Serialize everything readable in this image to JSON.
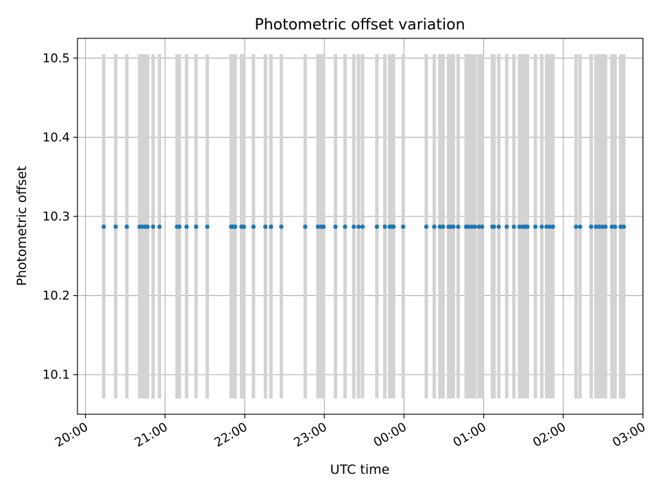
{
  "chart_data": {
    "type": "scatter",
    "title": "Photometric offset variation",
    "xlabel": "UTC time",
    "ylabel": "Photometric offset",
    "x_unit": "hours after 20:00 UTC (axis shows clock times, wrapping past midnight)",
    "xlim": [
      -0.1,
      7.0
    ],
    "ylim": [
      10.05,
      10.525
    ],
    "x_ticks": [
      {
        "value": 0,
        "label": "20:00"
      },
      {
        "value": 1,
        "label": "21:00"
      },
      {
        "value": 2,
        "label": "22:00"
      },
      {
        "value": 3,
        "label": "23:00"
      },
      {
        "value": 4,
        "label": "00:00"
      },
      {
        "value": 5,
        "label": "01:00"
      },
      {
        "value": 6,
        "label": "02:00"
      },
      {
        "value": 7,
        "label": "03:00"
      }
    ],
    "y_ticks": [
      {
        "value": 10.1,
        "label": "10.1"
      },
      {
        "value": 10.2,
        "label": "10.2"
      },
      {
        "value": 10.3,
        "label": "10.3"
      },
      {
        "value": 10.4,
        "label": "10.4"
      },
      {
        "value": 10.5,
        "label": "10.5"
      }
    ],
    "grid": true,
    "offset_value": 10.287,
    "error_range": [
      10.07,
      10.505
    ],
    "x": [
      0.23,
      0.38,
      0.52,
      0.68,
      0.71,
      0.75,
      0.78,
      0.85,
      0.93,
      1.15,
      1.18,
      1.27,
      1.39,
      1.53,
      1.83,
      1.85,
      1.88,
      1.96,
      1.99,
      2.11,
      2.26,
      2.33,
      2.46,
      2.76,
      2.92,
      2.96,
      2.99,
      3.14,
      3.26,
      3.37,
      3.43,
      3.48,
      3.66,
      3.76,
      3.82,
      3.85,
      3.87,
      3.99,
      4.28,
      4.38,
      4.45,
      4.49,
      4.56,
      4.59,
      4.62,
      4.68,
      4.78,
      4.81,
      4.85,
      4.89,
      4.94,
      4.98,
      5.11,
      5.13,
      5.19,
      5.29,
      5.38,
      5.45,
      5.49,
      5.52,
      5.55,
      5.65,
      5.73,
      5.79,
      5.83,
      5.87,
      6.16,
      6.21,
      6.35,
      6.41,
      6.45,
      6.49,
      6.53,
      6.61,
      6.65,
      6.72,
      6.76
    ],
    "y": [
      10.287,
      10.287,
      10.287,
      10.287,
      10.287,
      10.287,
      10.287,
      10.287,
      10.287,
      10.287,
      10.287,
      10.287,
      10.287,
      10.287,
      10.287,
      10.287,
      10.287,
      10.287,
      10.287,
      10.287,
      10.287,
      10.287,
      10.287,
      10.287,
      10.287,
      10.287,
      10.287,
      10.287,
      10.287,
      10.287,
      10.287,
      10.287,
      10.287,
      10.287,
      10.287,
      10.287,
      10.287,
      10.287,
      10.287,
      10.287,
      10.287,
      10.287,
      10.287,
      10.287,
      10.287,
      10.287,
      10.287,
      10.287,
      10.287,
      10.287,
      10.287,
      10.287,
      10.287,
      10.287,
      10.287,
      10.287,
      10.287,
      10.287,
      10.287,
      10.287,
      10.287,
      10.287,
      10.287,
      10.287,
      10.287,
      10.287,
      10.287,
      10.287,
      10.287,
      10.287,
      10.287,
      10.287,
      10.287,
      10.287,
      10.287,
      10.287,
      10.287
    ],
    "error_low": 10.07,
    "error_high": 10.505,
    "point_color": "#1f77b4",
    "errorbar_color": "#d3d3d3",
    "grid_color": "#b0b0b0"
  }
}
